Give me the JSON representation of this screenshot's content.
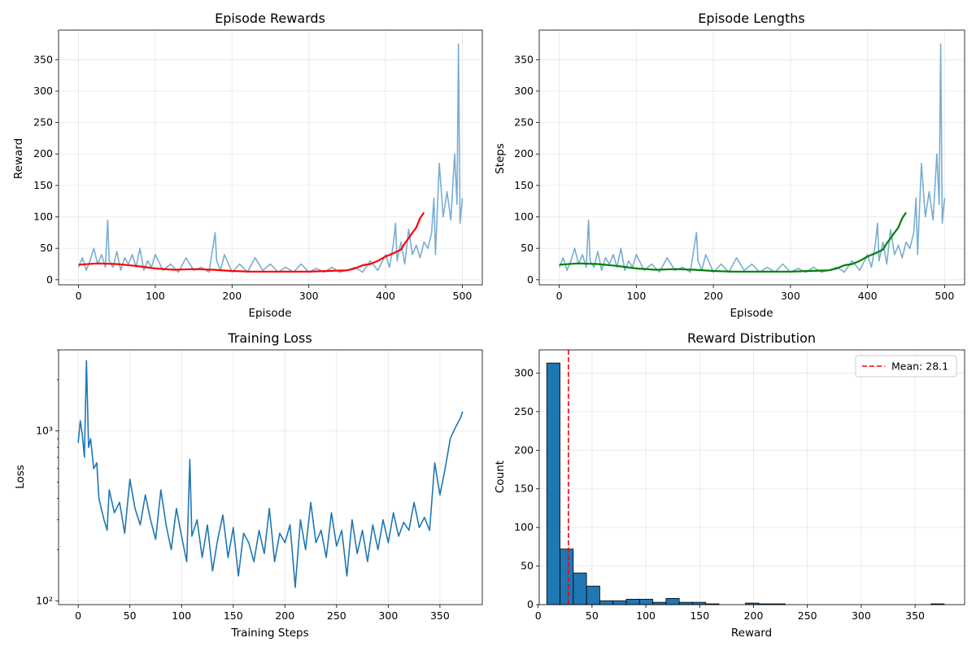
{
  "chart_data": [
    {
      "type": "line",
      "title": "Episode Rewards",
      "xlabel": "Episode",
      "ylabel": "Reward",
      "xlim": [
        -26,
        526
      ],
      "ylim": [
        -8,
        397
      ],
      "xticks": [
        0,
        100,
        200,
        300,
        400,
        500
      ],
      "yticks": [
        0,
        50,
        100,
        150,
        200,
        250,
        300,
        350
      ],
      "grid": true,
      "series": [
        {
          "role": "raw",
          "color": "#1f77b4",
          "alpha": 0.6,
          "x": [
            0,
            5,
            10,
            15,
            20,
            25,
            30,
            35,
            38,
            40,
            45,
            50,
            55,
            60,
            65,
            70,
            75,
            80,
            85,
            90,
            95,
            100,
            110,
            120,
            130,
            140,
            150,
            160,
            170,
            178,
            180,
            185,
            190,
            200,
            210,
            220,
            230,
            240,
            250,
            260,
            270,
            280,
            290,
            300,
            310,
            320,
            330,
            340,
            350,
            360,
            370,
            380,
            390,
            400,
            405,
            410,
            413,
            415,
            420,
            425,
            430,
            435,
            440,
            445,
            450,
            455,
            460,
            463,
            465,
            470,
            475,
            480,
            485,
            490,
            493,
            495,
            497,
            500
          ],
          "y": [
            20,
            35,
            15,
            30,
            50,
            25,
            40,
            20,
            95,
            30,
            20,
            45,
            15,
            35,
            25,
            40,
            20,
            50,
            15,
            30,
            20,
            40,
            15,
            25,
            12,
            35,
            15,
            20,
            12,
            75,
            30,
            15,
            40,
            12,
            25,
            12,
            35,
            15,
            25,
            12,
            20,
            12,
            25,
            12,
            18,
            12,
            20,
            12,
            15,
            20,
            12,
            30,
            15,
            40,
            20,
            55,
            90,
            30,
            60,
            25,
            80,
            40,
            55,
            35,
            60,
            50,
            75,
            130,
            40,
            185,
            100,
            140,
            95,
            200,
            120,
            375,
            90,
            130
          ]
        },
        {
          "role": "smoothed",
          "color": "#ff0000",
          "x": [
            0,
            25,
            50,
            75,
            100,
            125,
            150,
            175,
            200,
            225,
            250,
            275,
            300,
            325,
            350,
            360,
            370,
            380,
            390,
            400,
            410,
            420,
            425,
            430,
            435,
            440,
            445,
            450
          ],
          "y": [
            24,
            26,
            25,
            22,
            18,
            16,
            17,
            16,
            14,
            13,
            13,
            13,
            13,
            14,
            15,
            18,
            23,
            25,
            30,
            37,
            42,
            48,
            58,
            66,
            75,
            83,
            98,
            107
          ]
        }
      ]
    },
    {
      "type": "line",
      "title": "Episode Lengths",
      "xlabel": "Episode",
      "ylabel": "Steps",
      "xlim": [
        -26,
        526
      ],
      "ylim": [
        -8,
        397
      ],
      "xticks": [
        0,
        100,
        200,
        300,
        400,
        500
      ],
      "yticks": [
        0,
        50,
        100,
        150,
        200,
        250,
        300,
        350
      ],
      "grid": true,
      "series": [
        {
          "role": "raw",
          "color": "#1f77b4",
          "alpha": 0.6,
          "x": [
            0,
            5,
            10,
            15,
            20,
            25,
            30,
            35,
            38,
            40,
            45,
            50,
            55,
            60,
            65,
            70,
            75,
            80,
            85,
            90,
            95,
            100,
            110,
            120,
            130,
            140,
            150,
            160,
            170,
            178,
            180,
            185,
            190,
            200,
            210,
            220,
            230,
            240,
            250,
            260,
            270,
            280,
            290,
            300,
            310,
            320,
            330,
            340,
            350,
            360,
            370,
            380,
            390,
            400,
            405,
            410,
            413,
            415,
            420,
            425,
            430,
            435,
            440,
            445,
            450,
            455,
            460,
            463,
            465,
            470,
            475,
            480,
            485,
            490,
            493,
            495,
            497,
            500
          ],
          "y": [
            20,
            35,
            15,
            30,
            50,
            25,
            40,
            20,
            95,
            30,
            20,
            45,
            15,
            35,
            25,
            40,
            20,
            50,
            15,
            30,
            20,
            40,
            15,
            25,
            12,
            35,
            15,
            20,
            12,
            75,
            30,
            15,
            40,
            12,
            25,
            12,
            35,
            15,
            25,
            12,
            20,
            12,
            25,
            12,
            18,
            12,
            20,
            12,
            15,
            20,
            12,
            30,
            15,
            40,
            20,
            55,
            90,
            30,
            60,
            25,
            80,
            40,
            55,
            35,
            60,
            50,
            75,
            130,
            40,
            185,
            100,
            140,
            95,
            200,
            120,
            375,
            90,
            130
          ]
        },
        {
          "role": "smoothed",
          "color": "#008000",
          "x": [
            0,
            25,
            50,
            75,
            100,
            125,
            150,
            175,
            200,
            225,
            250,
            275,
            300,
            325,
            350,
            360,
            370,
            380,
            390,
            400,
            410,
            420,
            425,
            430,
            435,
            440,
            445,
            450
          ],
          "y": [
            24,
            26,
            25,
            22,
            18,
            16,
            17,
            16,
            14,
            13,
            13,
            13,
            13,
            14,
            15,
            18,
            23,
            25,
            30,
            37,
            42,
            48,
            58,
            66,
            75,
            83,
            98,
            107
          ]
        }
      ]
    },
    {
      "type": "line",
      "title": "Training Loss",
      "xlabel": "Training Steps",
      "ylabel": "Loss",
      "yscale": "log",
      "xlim": [
        -19,
        391
      ],
      "ylim": [
        95,
        3000
      ],
      "xticks": [
        0,
        50,
        100,
        150,
        200,
        250,
        300,
        350
      ],
      "yticks": [
        100,
        1000
      ],
      "ytick_labels": [
        "10²",
        "10³"
      ],
      "grid": true,
      "series": [
        {
          "color": "#1f77b4",
          "x": [
            0,
            2,
            4,
            6,
            8,
            10,
            12,
            15,
            18,
            20,
            25,
            28,
            30,
            35,
            40,
            45,
            50,
            55,
            60,
            65,
            70,
            75,
            80,
            85,
            90,
            95,
            100,
            105,
            108,
            110,
            115,
            120,
            125,
            130,
            135,
            140,
            145,
            150,
            155,
            160,
            165,
            170,
            175,
            180,
            185,
            190,
            195,
            200,
            205,
            210,
            215,
            220,
            225,
            230,
            235,
            240,
            245,
            250,
            255,
            260,
            265,
            270,
            275,
            280,
            285,
            290,
            295,
            300,
            305,
            310,
            315,
            320,
            325,
            330,
            335,
            340,
            345,
            350,
            355,
            360,
            365,
            370,
            372
          ],
          "y": [
            850,
            1150,
            950,
            700,
            2600,
            800,
            900,
            600,
            650,
            400,
            300,
            260,
            450,
            330,
            380,
            250,
            520,
            350,
            280,
            420,
            300,
            230,
            450,
            280,
            200,
            350,
            240,
            170,
            680,
            240,
            300,
            180,
            280,
            150,
            230,
            320,
            180,
            270,
            140,
            250,
            220,
            170,
            260,
            190,
            350,
            170,
            250,
            220,
            280,
            120,
            300,
            200,
            380,
            220,
            260,
            180,
            330,
            210,
            260,
            140,
            300,
            190,
            260,
            170,
            280,
            200,
            300,
            220,
            330,
            240,
            290,
            260,
            380,
            270,
            310,
            260,
            650,
            420,
            600,
            900,
            1050,
            1200,
            1300
          ]
        }
      ]
    },
    {
      "type": "bar",
      "title": "Reward Distribution",
      "xlabel": "Reward",
      "ylabel": "Count",
      "xlim": [
        1,
        396
      ],
      "ylim": [
        0,
        330
      ],
      "xticks": [
        0,
        50,
        100,
        150,
        200,
        250,
        300,
        350
      ],
      "yticks": [
        0,
        50,
        100,
        150,
        200,
        250,
        300
      ],
      "grid": true,
      "bin_start": 8,
      "bin_width": 12.3,
      "values": [
        313,
        72,
        41,
        24,
        5,
        5,
        7,
        7,
        3,
        8,
        3,
        3,
        1,
        0,
        0,
        2,
        1,
        1,
        0,
        0,
        0,
        0,
        0,
        0,
        0,
        0,
        0,
        0,
        0,
        1
      ],
      "bar_color": "#1f77b4",
      "edge_color": "#000000",
      "mean_line": {
        "x": 28.1,
        "color": "#ff0000",
        "label": "Mean: 28.1"
      },
      "legend_position": "top-right"
    }
  ]
}
